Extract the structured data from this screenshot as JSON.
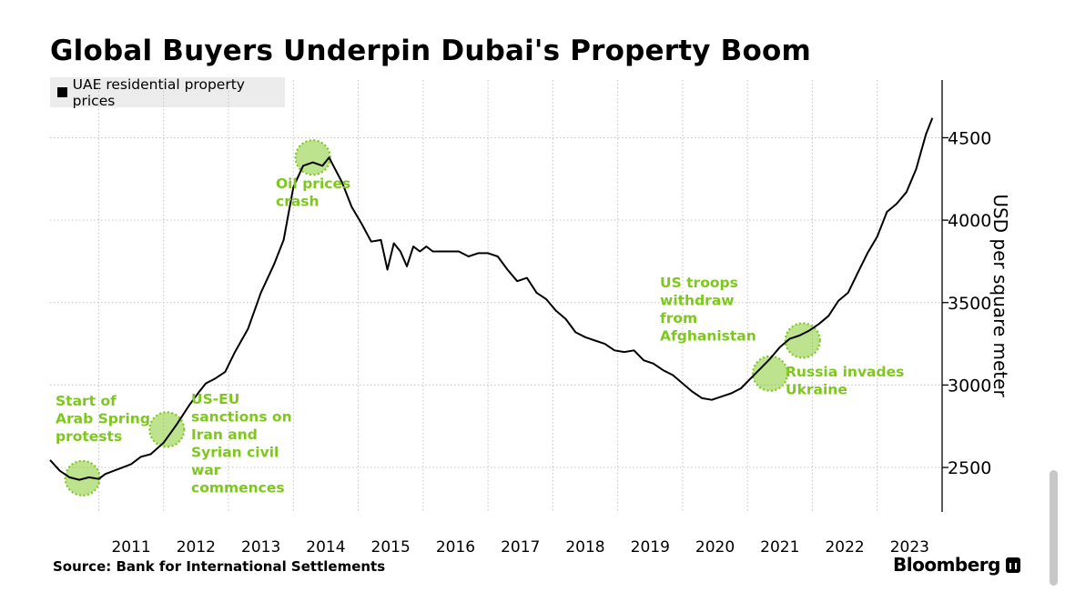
{
  "title": "Global Buyers Underpin Dubai's Property Boom",
  "source": "Source: Bank for International Settlements",
  "brand": "Bloomberg",
  "colors": {
    "line": "#000000",
    "highlight": "#7ec81e",
    "grid": "#c4c4c4",
    "legend_bg": "#ececec"
  },
  "chart_data": {
    "type": "line",
    "title": "Global Buyers Underpin Dubai's Property Boom",
    "ylabel": "USD per square meter",
    "xlabel": "",
    "xlim": [
      2010.25,
      2024.0
    ],
    "ylim": [
      2230,
      4850
    ],
    "yticks": [
      2500,
      3000,
      3500,
      4000,
      4500
    ],
    "ytick_labels": [
      "2500",
      "3000",
      "3500",
      "4000",
      "4500"
    ],
    "xticks": [
      2011,
      2012,
      2013,
      2014,
      2015,
      2016,
      2017,
      2018,
      2019,
      2020,
      2021,
      2022,
      2023
    ],
    "xtick_labels": [
      "2011",
      "2012",
      "2013",
      "2014",
      "2015",
      "2016",
      "2017",
      "2018",
      "2019",
      "2020",
      "2021",
      "2022",
      "2023"
    ],
    "legend": "top-left",
    "series": [
      {
        "name": "UAE residential property prices",
        "points": [
          [
            2010.25,
            2545
          ],
          [
            2010.4,
            2480
          ],
          [
            2010.55,
            2440
          ],
          [
            2010.7,
            2425
          ],
          [
            2010.85,
            2440
          ],
          [
            2011.0,
            2430
          ],
          [
            2011.1,
            2460
          ],
          [
            2011.3,
            2490
          ],
          [
            2011.5,
            2520
          ],
          [
            2011.65,
            2565
          ],
          [
            2011.8,
            2580
          ],
          [
            2012.0,
            2650
          ],
          [
            2012.2,
            2760
          ],
          [
            2012.4,
            2880
          ],
          [
            2012.55,
            2960
          ],
          [
            2012.65,
            3010
          ],
          [
            2012.8,
            3040
          ],
          [
            2012.95,
            3080
          ],
          [
            2013.1,
            3200
          ],
          [
            2013.3,
            3340
          ],
          [
            2013.5,
            3560
          ],
          [
            2013.7,
            3730
          ],
          [
            2013.85,
            3880
          ],
          [
            2014.0,
            4200
          ],
          [
            2014.15,
            4330
          ],
          [
            2014.3,
            4350
          ],
          [
            2014.45,
            4330
          ],
          [
            2014.55,
            4380
          ],
          [
            2014.75,
            4230
          ],
          [
            2014.9,
            4080
          ],
          [
            2015.05,
            3980
          ],
          [
            2015.2,
            3870
          ],
          [
            2015.35,
            3880
          ],
          [
            2015.45,
            3700
          ],
          [
            2015.55,
            3860
          ],
          [
            2015.65,
            3810
          ],
          [
            2015.75,
            3720
          ],
          [
            2015.85,
            3840
          ],
          [
            2015.95,
            3810
          ],
          [
            2016.05,
            3840
          ],
          [
            2016.15,
            3810
          ],
          [
            2016.35,
            3810
          ],
          [
            2016.55,
            3810
          ],
          [
            2016.7,
            3780
          ],
          [
            2016.85,
            3800
          ],
          [
            2017.0,
            3800
          ],
          [
            2017.15,
            3780
          ],
          [
            2017.3,
            3700
          ],
          [
            2017.45,
            3630
          ],
          [
            2017.6,
            3650
          ],
          [
            2017.75,
            3560
          ],
          [
            2017.9,
            3520
          ],
          [
            2018.05,
            3450
          ],
          [
            2018.2,
            3400
          ],
          [
            2018.35,
            3320
          ],
          [
            2018.5,
            3290
          ],
          [
            2018.65,
            3270
          ],
          [
            2018.8,
            3250
          ],
          [
            2018.95,
            3210
          ],
          [
            2019.1,
            3200
          ],
          [
            2019.25,
            3210
          ],
          [
            2019.4,
            3150
          ],
          [
            2019.55,
            3130
          ],
          [
            2019.7,
            3090
          ],
          [
            2019.85,
            3060
          ],
          [
            2020.0,
            3010
          ],
          [
            2020.15,
            2960
          ],
          [
            2020.3,
            2920
          ],
          [
            2020.45,
            2910
          ],
          [
            2020.6,
            2930
          ],
          [
            2020.75,
            2950
          ],
          [
            2020.9,
            2980
          ],
          [
            2021.05,
            3040
          ],
          [
            2021.2,
            3100
          ],
          [
            2021.35,
            3160
          ],
          [
            2021.5,
            3230
          ],
          [
            2021.65,
            3280
          ],
          [
            2021.8,
            3300
          ],
          [
            2021.95,
            3330
          ],
          [
            2022.1,
            3370
          ],
          [
            2022.25,
            3420
          ],
          [
            2022.4,
            3510
          ],
          [
            2022.55,
            3560
          ],
          [
            2022.7,
            3680
          ],
          [
            2022.85,
            3800
          ],
          [
            2023.0,
            3900
          ],
          [
            2023.15,
            4050
          ],
          [
            2023.3,
            4100
          ],
          [
            2023.45,
            4170
          ],
          [
            2023.6,
            4310
          ],
          [
            2023.75,
            4520
          ],
          [
            2023.85,
            4620
          ]
        ]
      }
    ],
    "annotations": [
      {
        "id": "arab-spring",
        "x": 2010.75,
        "y": 2435,
        "text": [
          "Start of",
          "Arab Spring",
          "protests"
        ]
      },
      {
        "id": "us-eu-sanctions",
        "x": 2012.05,
        "y": 2730,
        "text": [
          "US-EU",
          "sanctions on",
          "Iran and",
          "Syrian civil",
          "war",
          "commences"
        ]
      },
      {
        "id": "oil-crash",
        "x": 2014.3,
        "y": 4380,
        "text": [
          "Oil prices",
          "crash"
        ]
      },
      {
        "id": "us-afghanistan",
        "x": 2021.35,
        "y": 3070,
        "text": [
          "US troops",
          "withdraw",
          "from",
          "Afghanistan"
        ]
      },
      {
        "id": "russia-ukraine",
        "x": 2021.85,
        "y": 3270,
        "text": [
          "Russia invades",
          "Ukraine"
        ]
      }
    ]
  }
}
